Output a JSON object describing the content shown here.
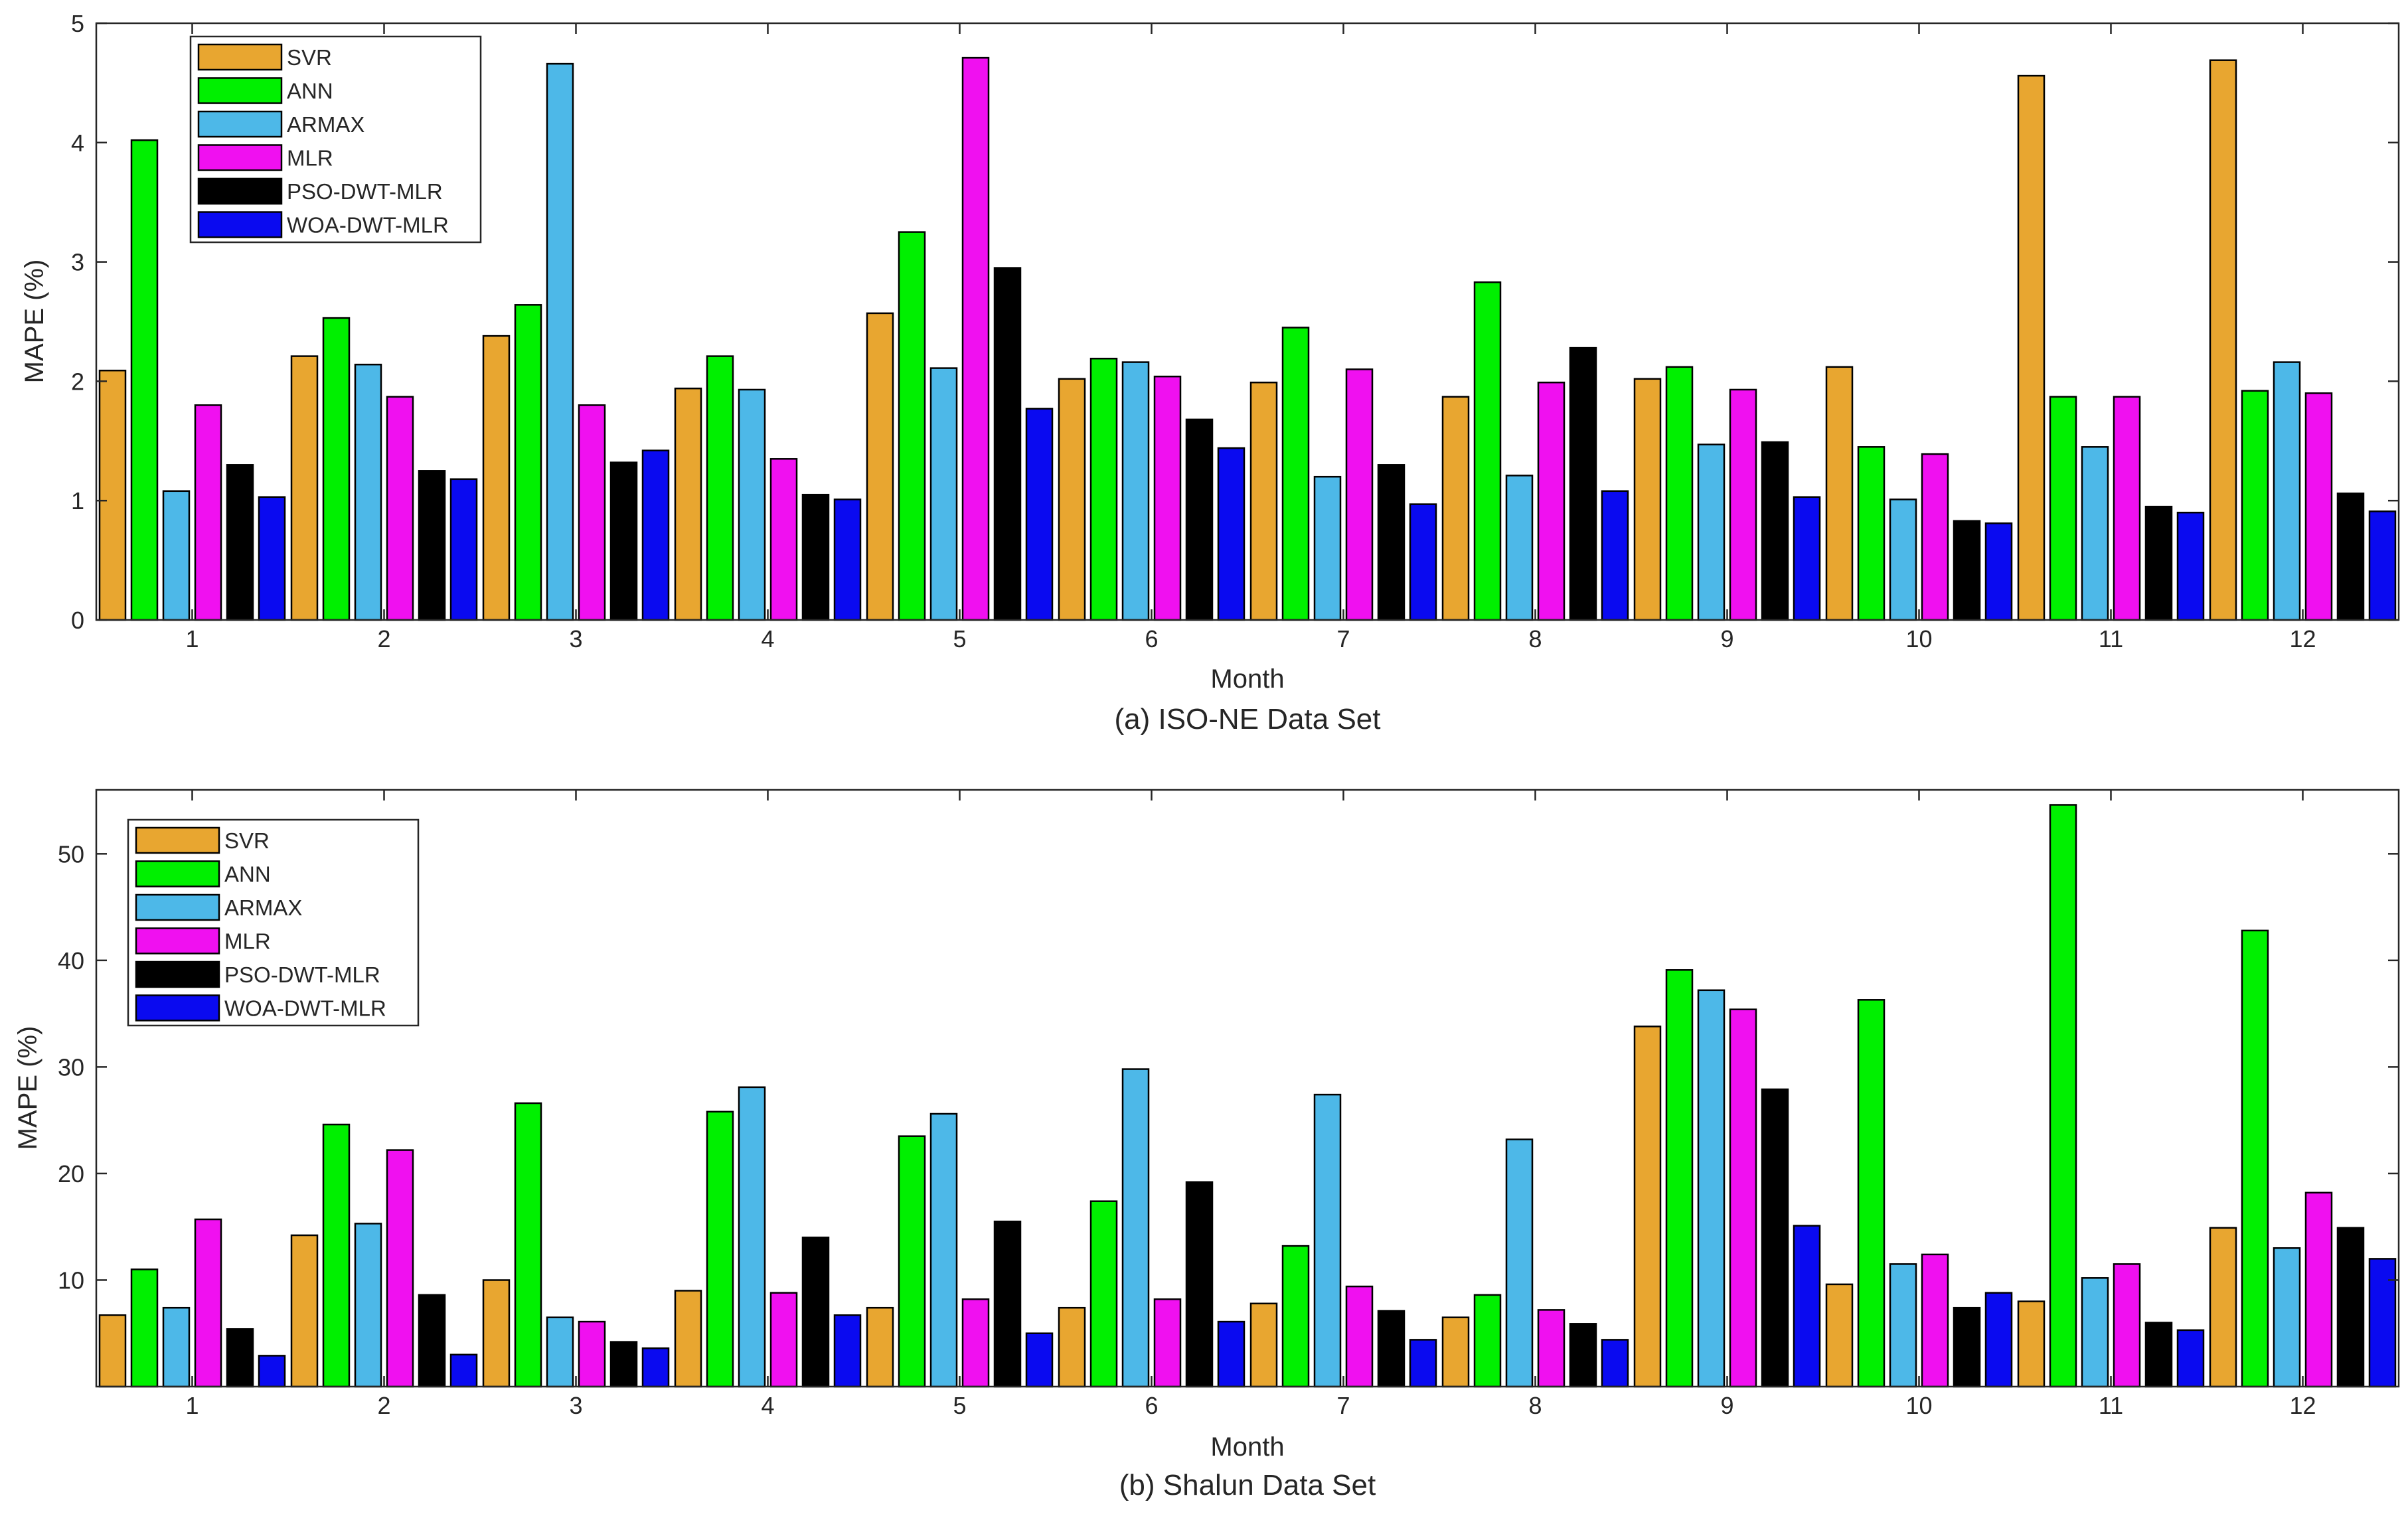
{
  "chart_data": [
    {
      "type": "bar",
      "title": "(a) ISO-NE Data Set",
      "xlabel": "Month",
      "ylabel": "MAPE (%)",
      "ylim": [
        0,
        5
      ],
      "yticks": [
        0,
        1,
        2,
        3,
        4,
        5
      ],
      "grid": false,
      "legend_position": "top-left",
      "categories": [
        "1",
        "2",
        "3",
        "4",
        "5",
        "6",
        "7",
        "8",
        "9",
        "10",
        "11",
        "12"
      ],
      "series": [
        {
          "name": "SVR",
          "color": "#E8A630",
          "values": [
            2.09,
            2.21,
            2.38,
            1.94,
            2.57,
            2.02,
            1.99,
            1.87,
            2.02,
            2.12,
            4.56,
            4.69
          ]
        },
        {
          "name": "ANN",
          "color": "#00F000",
          "values": [
            4.02,
            2.53,
            2.64,
            2.21,
            3.25,
            2.19,
            2.45,
            2.83,
            2.12,
            1.45,
            1.87,
            1.92
          ]
        },
        {
          "name": "ARMAX",
          "color": "#4DB8E8",
          "values": [
            1.08,
            2.14,
            4.66,
            1.93,
            2.11,
            2.16,
            1.2,
            1.21,
            1.47,
            1.01,
            1.45,
            2.16
          ]
        },
        {
          "name": "MLR",
          "color": "#F010F0",
          "values": [
            1.8,
            1.87,
            1.8,
            1.35,
            4.71,
            2.04,
            2.1,
            1.99,
            1.93,
            1.39,
            1.87,
            1.9
          ]
        },
        {
          "name": "PSO-DWT-MLR",
          "color": "#000000",
          "values": [
            1.3,
            1.25,
            1.32,
            1.05,
            2.95,
            1.68,
            1.3,
            2.28,
            1.49,
            0.83,
            0.95,
            1.06
          ]
        },
        {
          "name": "WOA-DWT-MLR",
          "color": "#0A0AF0",
          "values": [
            1.03,
            1.18,
            1.42,
            1.01,
            1.77,
            1.44,
            0.97,
            1.08,
            1.03,
            0.81,
            0.9,
            0.91
          ]
        }
      ]
    },
    {
      "type": "bar",
      "title": "(b) Shalun Data Set",
      "xlabel": "Month",
      "ylabel": "MAPE (%)",
      "ylim": [
        0,
        56
      ],
      "yticks": [
        10,
        20,
        30,
        40,
        50
      ],
      "grid": false,
      "legend_position": "top-left",
      "categories": [
        "1",
        "2",
        "3",
        "4",
        "5",
        "6",
        "7",
        "8",
        "9",
        "10",
        "11",
        "12"
      ],
      "series": [
        {
          "name": "SVR",
          "color": "#E8A630",
          "values": [
            6.7,
            14.2,
            10.0,
            9.0,
            7.4,
            7.4,
            7.8,
            6.5,
            33.8,
            9.6,
            8.0,
            14.9
          ]
        },
        {
          "name": "ANN",
          "color": "#00F000",
          "values": [
            11.0,
            24.6,
            26.6,
            25.8,
            23.5,
            17.4,
            13.2,
            8.6,
            39.1,
            36.3,
            54.6,
            42.8
          ]
        },
        {
          "name": "ARMAX",
          "color": "#4DB8E8",
          "values": [
            7.4,
            15.3,
            6.5,
            28.1,
            25.6,
            29.8,
            27.4,
            23.2,
            37.2,
            11.5,
            10.2,
            13.0
          ]
        },
        {
          "name": "MLR",
          "color": "#F010F0",
          "values": [
            15.7,
            22.2,
            6.1,
            8.8,
            8.2,
            8.2,
            9.4,
            7.2,
            35.4,
            12.4,
            11.5,
            18.2
          ]
        },
        {
          "name": "PSO-DWT-MLR",
          "color": "#000000",
          "values": [
            5.4,
            8.6,
            4.2,
            14.0,
            15.5,
            19.2,
            7.1,
            5.9,
            27.9,
            7.4,
            6.0,
            14.9
          ]
        },
        {
          "name": "WOA-DWT-MLR",
          "color": "#0A0AF0",
          "values": [
            2.9,
            3.0,
            3.6,
            6.7,
            5.0,
            6.1,
            4.4,
            4.4,
            15.1,
            8.8,
            5.3,
            12.0
          ]
        }
      ]
    }
  ]
}
